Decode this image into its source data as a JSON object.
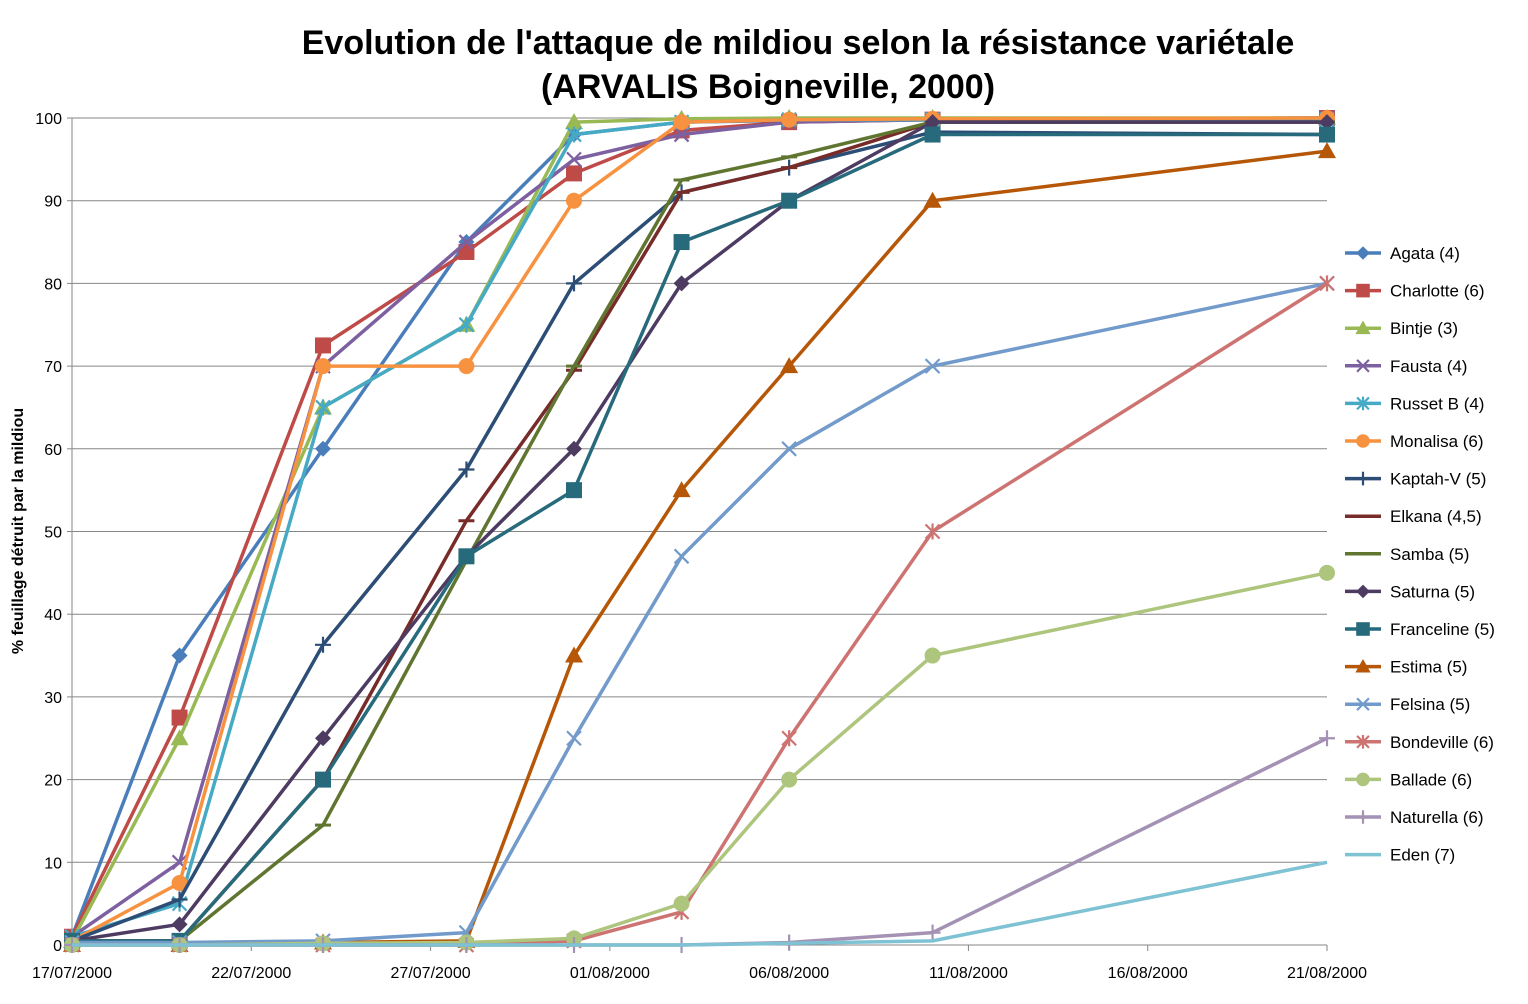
{
  "chart_data": {
    "type": "line",
    "title": "Evolution de l'attaque de mildiou selon la résistance variétale",
    "subtitle": "(ARVALIS Boigneville, 2000)",
    "xlabel": "",
    "ylabel": "% feuillage détruit par la mildiou",
    "x_ticks": [
      "17/07/2000",
      "22/07/2000",
      "27/07/2000",
      "01/08/2000",
      "06/08/2000",
      "11/08/2000",
      "16/08/2000",
      "21/08/2000"
    ],
    "x_range": [
      "2000-07-17",
      "2000-08-21"
    ],
    "ylim": [
      0,
      100
    ],
    "y_ticks": [
      0,
      10,
      20,
      30,
      40,
      50,
      60,
      70,
      80,
      90,
      100
    ],
    "grid": "horizontal",
    "legend_position": "right",
    "x": [
      "2000-07-17",
      "2000-07-20",
      "2000-07-24",
      "2000-07-28",
      "2000-07-31",
      "2000-08-03",
      "2000-08-06",
      "2000-08-10",
      "2000-08-21"
    ],
    "series": [
      {
        "name": "Agata (4)",
        "color": "#4a7ebb",
        "marker": "diamond",
        "values": [
          1,
          35,
          60,
          85,
          98,
          99.5,
          99.7,
          99.8,
          100
        ]
      },
      {
        "name": "Charlotte (6)",
        "color": "#be4b48",
        "marker": "square",
        "values": [
          1,
          27.5,
          72.5,
          83.8,
          93.3,
          98.5,
          99.5,
          99.8,
          100
        ]
      },
      {
        "name": "Bintje (3)",
        "color": "#98b954",
        "marker": "triangle",
        "values": [
          0.5,
          25,
          65,
          75,
          99.5,
          99.9,
          100,
          100,
          100
        ]
      },
      {
        "name": "Fausta (4)",
        "color": "#7d60a0",
        "marker": "x",
        "values": [
          1,
          10,
          70,
          85,
          95,
          98,
          99.5,
          99.8,
          100
        ]
      },
      {
        "name": "Russet B (4)",
        "color": "#46aac5",
        "marker": "star",
        "values": [
          1,
          5,
          65,
          75,
          98,
          99.5,
          99.8,
          99.8,
          99.8
        ]
      },
      {
        "name": "Monalisa (6)",
        "color": "#f69240",
        "marker": "circle",
        "values": [
          0.5,
          7.5,
          70,
          70,
          90,
          99.5,
          99.8,
          99.9,
          100
        ]
      },
      {
        "name": "Kaptah-V (5)",
        "color": "#2c4d75",
        "marker": "plus",
        "values": [
          0.5,
          5.5,
          36.3,
          57.5,
          80,
          91,
          94,
          98.3,
          98
        ]
      },
      {
        "name": "Elkana (4,5)",
        "color": "#772c2a",
        "marker": "dash",
        "values": [
          0.5,
          0.5,
          20,
          51.3,
          69.5,
          91,
          94,
          99.5,
          99.5
        ]
      },
      {
        "name": "Samba (5)",
        "color": "#5f7530",
        "marker": "dash",
        "values": [
          0.5,
          0.5,
          14.5,
          46.5,
          70,
          92.5,
          95.3,
          99.5,
          99.5
        ]
      },
      {
        "name": "Saturna (5)",
        "color": "#4d3b62",
        "marker": "diamond",
        "values": [
          0.5,
          2.5,
          25,
          47,
          60,
          80,
          90,
          99.5,
          99.5
        ]
      },
      {
        "name": "Franceline (5)",
        "color": "#276a7c",
        "marker": "square",
        "values": [
          0.5,
          0.5,
          20,
          47,
          55,
          85,
          90,
          98,
          98
        ]
      },
      {
        "name": "Estima (5)",
        "color": "#b65708",
        "marker": "triangle",
        "values": [
          0,
          0,
          0.3,
          0.5,
          35,
          55,
          70,
          90,
          96
        ]
      },
      {
        "name": "Felsina (5)",
        "color": "#729aca",
        "marker": "x",
        "values": [
          0.3,
          0.3,
          0.5,
          1.5,
          25,
          47,
          60,
          70,
          80
        ]
      },
      {
        "name": "Bondeville (6)",
        "color": "#cd7371",
        "marker": "star",
        "values": [
          0,
          0,
          0,
          0,
          0.5,
          4,
          25,
          50,
          80
        ]
      },
      {
        "name": "Ballade (6)",
        "color": "#aec57d",
        "marker": "circle",
        "values": [
          0,
          0,
          0.2,
          0.3,
          0.8,
          5,
          20,
          35,
          45
        ]
      },
      {
        "name": "Naturella (6)",
        "color": "#a491b3",
        "marker": "plus",
        "values": [
          0,
          0,
          0,
          0,
          0,
          0,
          0.3,
          1.5,
          25
        ]
      },
      {
        "name": "Eden (7)",
        "color": "#7ec2d4",
        "marker": "none",
        "values": [
          0,
          0,
          0,
          0,
          0,
          0,
          0.2,
          0.5,
          10
        ]
      }
    ]
  }
}
